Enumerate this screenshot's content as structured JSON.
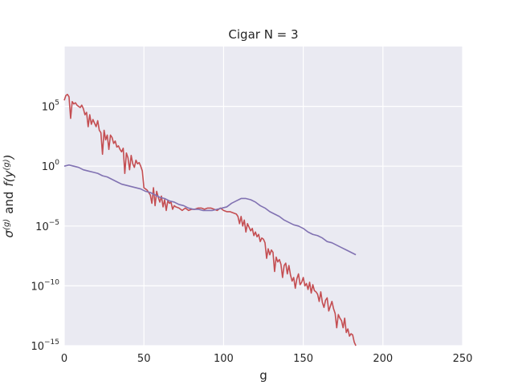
{
  "chart_data": {
    "type": "line",
    "title": "Cigar N = 3",
    "xlabel": "g",
    "ylabel": {
      "sigma": "σ",
      "sigma_sup": "(g)",
      "and": "and",
      "f": "f(y",
      "f_sup": "(g)",
      "close": ")"
    },
    "xlim": [
      0,
      250
    ],
    "ylim_log10": [
      -15,
      10
    ],
    "yscale": "log",
    "grid": true,
    "x_ticks": [
      {
        "label": "0",
        "value": 0
      },
      {
        "label": "50",
        "value": 50
      },
      {
        "label": "100",
        "value": 100
      },
      {
        "label": "150",
        "value": 150
      },
      {
        "label": "200",
        "value": 200
      },
      {
        "label": "250",
        "value": 250
      }
    ],
    "y_ticks": [
      {
        "base": "10",
        "exp": "5",
        "value": 5
      },
      {
        "base": "10",
        "exp": "0",
        "value": 0
      },
      {
        "base": "10",
        "exp": "−5",
        "value": -5
      },
      {
        "base": "10",
        "exp": "−10",
        "value": -10
      },
      {
        "base": "10",
        "exp": "−15",
        "value": -15
      }
    ],
    "colors": {
      "background": "#eaeaf2",
      "grid": "#ffffff",
      "f_series": "#c44e52",
      "sigma_series": "#8172b2"
    },
    "series": [
      {
        "key": "f_series",
        "log10_points": [
          [
            0,
            5.5
          ],
          [
            1,
            5.9
          ],
          [
            2,
            6.0
          ],
          [
            3,
            5.8
          ],
          [
            4,
            4.0
          ],
          [
            5,
            5.4
          ],
          [
            6,
            5.2
          ],
          [
            7,
            5.3
          ],
          [
            8,
            5.1
          ],
          [
            9,
            5.0
          ],
          [
            10,
            4.9
          ],
          [
            11,
            5.1
          ],
          [
            12,
            4.8
          ],
          [
            13,
            4.3
          ],
          [
            14,
            4.5
          ],
          [
            15,
            3.3
          ],
          [
            16,
            4.3
          ],
          [
            17,
            3.5
          ],
          [
            18,
            3.9
          ],
          [
            19,
            3.6
          ],
          [
            20,
            3.3
          ],
          [
            21,
            3.8
          ],
          [
            22,
            3.0
          ],
          [
            23,
            2.8
          ],
          [
            24,
            1.0
          ],
          [
            25,
            3.0
          ],
          [
            26,
            2.2
          ],
          [
            27,
            2.6
          ],
          [
            28,
            1.4
          ],
          [
            29,
            2.6
          ],
          [
            30,
            2.4
          ],
          [
            31,
            1.9
          ],
          [
            32,
            2.1
          ],
          [
            33,
            1.6
          ],
          [
            34,
            1.7
          ],
          [
            35,
            1.4
          ],
          [
            36,
            1.2
          ],
          [
            37,
            1.5
          ],
          [
            38,
            -0.6
          ],
          [
            39,
            1.1
          ],
          [
            40,
            0.7
          ],
          [
            41,
            -0.3
          ],
          [
            42,
            0.9
          ],
          [
            43,
            0.2
          ],
          [
            44,
            -0.1
          ],
          [
            45,
            0.5
          ],
          [
            46,
            0.2
          ],
          [
            47,
            0.3
          ],
          [
            48,
            0.0
          ],
          [
            49,
            -0.4
          ],
          [
            50,
            -1.8
          ],
          [
            51,
            -1.9
          ],
          [
            52,
            -2.0
          ],
          [
            53,
            -2.2
          ],
          [
            54,
            -2.4
          ],
          [
            55,
            -3.1
          ],
          [
            56,
            -1.8
          ],
          [
            57,
            -3.3
          ],
          [
            58,
            -2.1
          ],
          [
            59,
            -2.6
          ],
          [
            60,
            -3.0
          ],
          [
            61,
            -2.5
          ],
          [
            62,
            -3.4
          ],
          [
            63,
            -2.8
          ],
          [
            64,
            -3.7
          ],
          [
            65,
            -2.9
          ],
          [
            66,
            -3.1
          ],
          [
            67,
            -3.0
          ],
          [
            68,
            -3.6
          ],
          [
            69,
            -3.3
          ],
          [
            70,
            -3.4
          ],
          [
            72,
            -3.5
          ],
          [
            74,
            -3.7
          ],
          [
            76,
            -3.5
          ],
          [
            78,
            -3.7
          ],
          [
            80,
            -3.6
          ],
          [
            82,
            -3.6
          ],
          [
            84,
            -3.5
          ],
          [
            86,
            -3.5
          ],
          [
            88,
            -3.6
          ],
          [
            90,
            -3.5
          ],
          [
            92,
            -3.5
          ],
          [
            94,
            -3.6
          ],
          [
            96,
            -3.7
          ],
          [
            98,
            -3.5
          ],
          [
            100,
            -3.7
          ],
          [
            102,
            -3.8
          ],
          [
            104,
            -3.8
          ],
          [
            106,
            -3.9
          ],
          [
            108,
            -4.0
          ],
          [
            109,
            -4.2
          ],
          [
            110,
            -4.8
          ],
          [
            111,
            -4.2
          ],
          [
            112,
            -5.0
          ],
          [
            113,
            -4.5
          ],
          [
            114,
            -5.5
          ],
          [
            115,
            -4.8
          ],
          [
            116,
            -5.1
          ],
          [
            117,
            -5.4
          ],
          [
            118,
            -5.2
          ],
          [
            119,
            -5.8
          ],
          [
            120,
            -5.5
          ],
          [
            121,
            -5.9
          ],
          [
            122,
            -5.7
          ],
          [
            123,
            -6.3
          ],
          [
            124,
            -6.0
          ],
          [
            125,
            -6.1
          ],
          [
            126,
            -6.4
          ],
          [
            127,
            -7.7
          ],
          [
            128,
            -6.9
          ],
          [
            129,
            -7.4
          ],
          [
            130,
            -7.0
          ],
          [
            131,
            -7.2
          ],
          [
            132,
            -8.8
          ],
          [
            133,
            -7.6
          ],
          [
            134,
            -8.0
          ],
          [
            135,
            -7.8
          ],
          [
            136,
            -8.2
          ],
          [
            137,
            -9.3
          ],
          [
            138,
            -8.3
          ],
          [
            139,
            -8.1
          ],
          [
            140,
            -9.0
          ],
          [
            141,
            -8.3
          ],
          [
            142,
            -9.1
          ],
          [
            143,
            -9.6
          ],
          [
            144,
            -9.3
          ],
          [
            145,
            -10.2
          ],
          [
            146,
            -9.4
          ],
          [
            147,
            -9.0
          ],
          [
            148,
            -9.9
          ],
          [
            149,
            -9.7
          ],
          [
            150,
            -9.3
          ],
          [
            151,
            -10.0
          ],
          [
            152,
            -9.8
          ],
          [
            153,
            -10.3
          ],
          [
            154,
            -9.7
          ],
          [
            155,
            -10.6
          ],
          [
            156,
            -9.9
          ],
          [
            157,
            -10.4
          ],
          [
            158,
            -10.5
          ],
          [
            159,
            -10.7
          ],
          [
            160,
            -11.3
          ],
          [
            161,
            -10.5
          ],
          [
            162,
            -11.4
          ],
          [
            163,
            -11.8
          ],
          [
            164,
            -11.2
          ],
          [
            165,
            -11.0
          ],
          [
            166,
            -12.1
          ],
          [
            167,
            -11.7
          ],
          [
            168,
            -11.3
          ],
          [
            169,
            -11.9
          ],
          [
            170,
            -12.3
          ],
          [
            171,
            -13.5
          ],
          [
            172,
            -12.4
          ],
          [
            173,
            -12.7
          ],
          [
            174,
            -12.9
          ],
          [
            175,
            -13.5
          ],
          [
            176,
            -12.7
          ],
          [
            177,
            -13.9
          ],
          [
            178,
            -13.6
          ],
          [
            179,
            -14.2
          ],
          [
            180,
            -14.0
          ],
          [
            181,
            -14.1
          ],
          [
            182,
            -14.7
          ],
          [
            183,
            -15.0
          ]
        ]
      },
      {
        "key": "sigma_series",
        "log10_points": [
          [
            0,
            0.0
          ],
          [
            3,
            0.1
          ],
          [
            6,
            0.0
          ],
          [
            9,
            -0.1
          ],
          [
            12,
            -0.3
          ],
          [
            15,
            -0.4
          ],
          [
            18,
            -0.5
          ],
          [
            21,
            -0.6
          ],
          [
            24,
            -0.8
          ],
          [
            27,
            -0.9
          ],
          [
            30,
            -1.1
          ],
          [
            33,
            -1.3
          ],
          [
            36,
            -1.5
          ],
          [
            39,
            -1.6
          ],
          [
            42,
            -1.7
          ],
          [
            45,
            -1.8
          ],
          [
            48,
            -1.9
          ],
          [
            51,
            -2.1
          ],
          [
            54,
            -2.2
          ],
          [
            57,
            -2.4
          ],
          [
            60,
            -2.6
          ],
          [
            63,
            -2.7
          ],
          [
            66,
            -2.9
          ],
          [
            69,
            -3.0
          ],
          [
            72,
            -3.2
          ],
          [
            75,
            -3.3
          ],
          [
            78,
            -3.5
          ],
          [
            81,
            -3.6
          ],
          [
            84,
            -3.6
          ],
          [
            87,
            -3.7
          ],
          [
            90,
            -3.7
          ],
          [
            93,
            -3.7
          ],
          [
            96,
            -3.6
          ],
          [
            99,
            -3.5
          ],
          [
            102,
            -3.4
          ],
          [
            105,
            -3.1
          ],
          [
            108,
            -2.9
          ],
          [
            111,
            -2.7
          ],
          [
            114,
            -2.7
          ],
          [
            117,
            -2.8
          ],
          [
            120,
            -3.0
          ],
          [
            123,
            -3.3
          ],
          [
            126,
            -3.5
          ],
          [
            129,
            -3.8
          ],
          [
            132,
            -4.0
          ],
          [
            135,
            -4.2
          ],
          [
            138,
            -4.5
          ],
          [
            141,
            -4.7
          ],
          [
            144,
            -4.9
          ],
          [
            147,
            -5.0
          ],
          [
            150,
            -5.2
          ],
          [
            153,
            -5.5
          ],
          [
            156,
            -5.7
          ],
          [
            159,
            -5.8
          ],
          [
            162,
            -6.0
          ],
          [
            165,
            -6.3
          ],
          [
            168,
            -6.4
          ],
          [
            171,
            -6.6
          ],
          [
            174,
            -6.8
          ],
          [
            177,
            -7.0
          ],
          [
            180,
            -7.2
          ],
          [
            183,
            -7.4
          ]
        ]
      }
    ]
  }
}
